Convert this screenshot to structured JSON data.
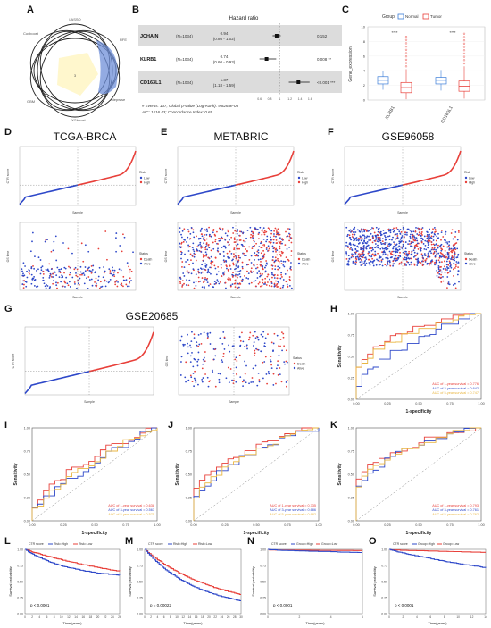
{
  "panels": {
    "A": {
      "label": "A",
      "sets": [
        "LASSO",
        "RFE",
        "Stepwise",
        "XGboost",
        "GBM",
        "Coxboost"
      ],
      "center_value": "3"
    },
    "B": {
      "label": "B",
      "header": "Hazard ratio",
      "rows": [
        {
          "gene": "JCHAIN",
          "n": "(N=1034)",
          "hr": "0.94",
          "ci": "(0.86 - 1.02)",
          "p": "0.152",
          "sig": "",
          "est": 0.94,
          "lo": 0.86,
          "hi": 1.02
        },
        {
          "gene": "KLRB1",
          "n": "(N=1034)",
          "hr": "0.74",
          "ci": "(0.60 - 0.93)",
          "p": "0.008",
          "sig": "**",
          "est": 0.74,
          "lo": 0.6,
          "hi": 0.93
        },
        {
          "gene": "CD163L1",
          "n": "(N=1034)",
          "hr": "1.37",
          "ci": "(1.18 - 1.59)",
          "p": "<0.001",
          "sig": "***",
          "est": 1.37,
          "lo": 1.18,
          "hi": 1.59
        }
      ],
      "footer1": "# Events: 137; Global p-value (Log-Rank): 9.8264e-08",
      "footer2": "AIC: 1516.43; Concordance Index: 0.69",
      "ticks": [
        "0.6",
        "0.8",
        "1",
        "1.2",
        "1.4",
        "1.6"
      ]
    },
    "C": {
      "label": "C",
      "legend_title": "Group",
      "legend_items": [
        "Normal",
        "Tumor"
      ],
      "ylabel": "Gene_expression",
      "yticks": [
        "0",
        "2",
        "4",
        "6",
        "8",
        "10"
      ],
      "genes": [
        "KLRB1",
        "CD163L1"
      ],
      "sig": [
        "****",
        "****"
      ],
      "colors": {
        "normal": "#3b7dd8",
        "tumor": "#e8403a"
      }
    },
    "D": {
      "label": "D",
      "title": "TCGA-BRCA"
    },
    "E": {
      "label": "E",
      "title": "METABRIC"
    },
    "F": {
      "label": "F",
      "title": "GSE96058"
    },
    "G": {
      "label": "G",
      "title": "GSE20685"
    },
    "H": {
      "label": "H",
      "auc": [
        "AUC of 1-year survival = 0.776",
        "AUC of 3-year survival = 0.642",
        "AUC of 5-year survival = 0.747"
      ]
    },
    "I": {
      "label": "I",
      "auc": [
        "AUC of 1-year survival = 0.638",
        "AUC of 3-year survival = 0.563",
        "AUC of 5-year survival = 0.575"
      ]
    },
    "J": {
      "label": "J",
      "auc": [
        "AUC of 1-year survival = 0.735",
        "AUC of 3-year survival = 0.686",
        "AUC of 5-year survival = 0.682"
      ]
    },
    "K": {
      "label": "K",
      "auc": [
        "AUC of 1-year survival = 0.793",
        "AUC of 3-year survival = 0.761",
        "AUC of 5-year survival = 0.762"
      ]
    },
    "L": {
      "label": "L",
      "pvalue": "p < 0.0001"
    },
    "M": {
      "label": "M",
      "pvalue": "p = 0.00022"
    },
    "N": {
      "label": "N",
      "pvalue": "p < 0.0001"
    },
    "O": {
      "label": "O",
      "pvalue": "p < 0.0001"
    }
  },
  "risk_axis": {
    "ylabel_score": "CTR score",
    "ylabel_time": "OS time",
    "xlabel": "Sample",
    "legend_risk_title": "Risk",
    "legend_risk": [
      "Low",
      "High"
    ],
    "legend_status_title": "Status",
    "legend_status": [
      "Death",
      "Alive"
    ]
  },
  "roc_axis": {
    "xlabel": "1-specificity",
    "ylabel": "Sensitivity",
    "ticks": [
      "0.00",
      "0.25",
      "0.50",
      "0.75",
      "1.00"
    ]
  },
  "km_axis": {
    "ylabel": "Survival probability",
    "xlabel": "Time(years)",
    "legend_title": "CTR score",
    "legend": [
      "Risk=High",
      "Risk=Low"
    ],
    "legend_alt": [
      "Group=High",
      "Group=Low"
    ]
  },
  "colors": {
    "red": "#e8403a",
    "blue": "#2e48c9",
    "orange": "#e9b642",
    "gray": "#999999"
  }
}
